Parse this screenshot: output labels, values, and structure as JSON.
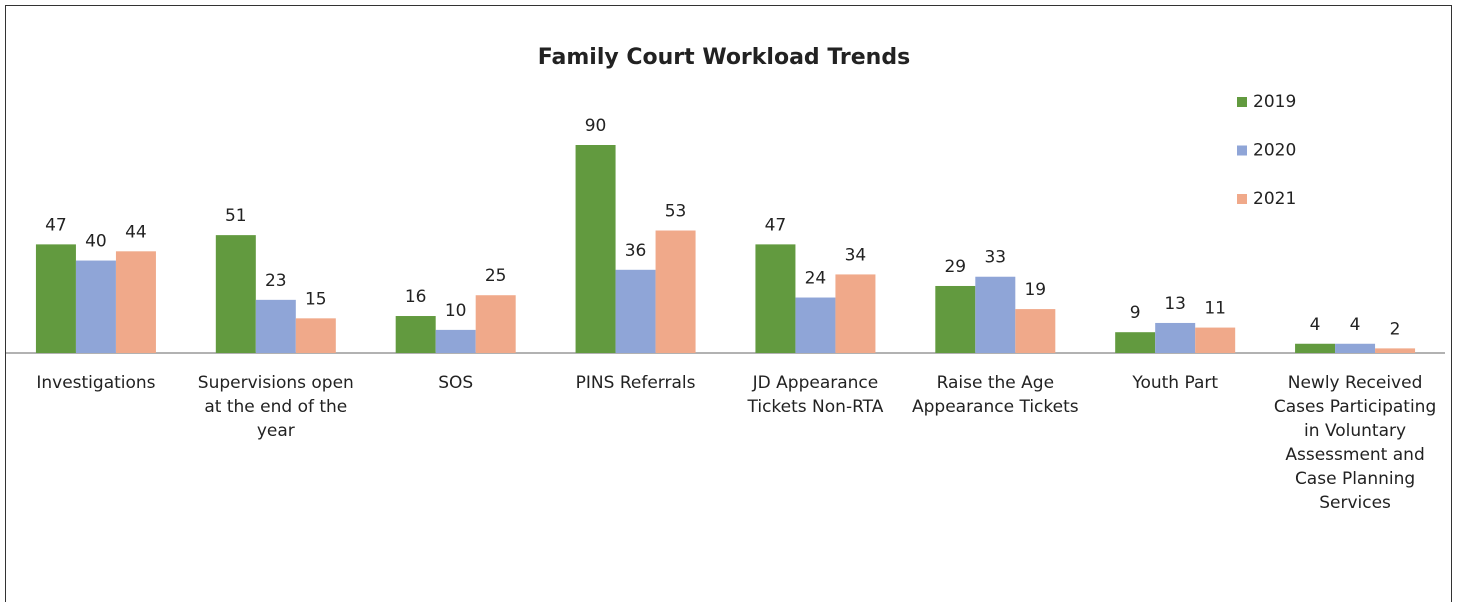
{
  "chart_data": {
    "type": "bar",
    "title": "Family Court Workload Trends",
    "categories": [
      "Investigations",
      "Supervisions open at the end of the year",
      "SOS",
      "PINS Referrals",
      "JD Appearance Tickets Non-RTA",
      "Raise the Age Appearance Tickets",
      "Youth Part",
      "Newly Received Cases Participating in Voluntary Assessment and Case Planning Services"
    ],
    "series": [
      {
        "name": "2019",
        "color": "#629a3f",
        "values": [
          47,
          51,
          16,
          90,
          47,
          29,
          9,
          4
        ]
      },
      {
        "name": "2020",
        "color": "#8fa5d7",
        "values": [
          40,
          23,
          10,
          36,
          24,
          33,
          13,
          4
        ]
      },
      {
        "name": "2021",
        "color": "#f0a98a",
        "values": [
          44,
          15,
          25,
          53,
          34,
          19,
          11,
          2
        ]
      }
    ],
    "legend": "right"
  }
}
